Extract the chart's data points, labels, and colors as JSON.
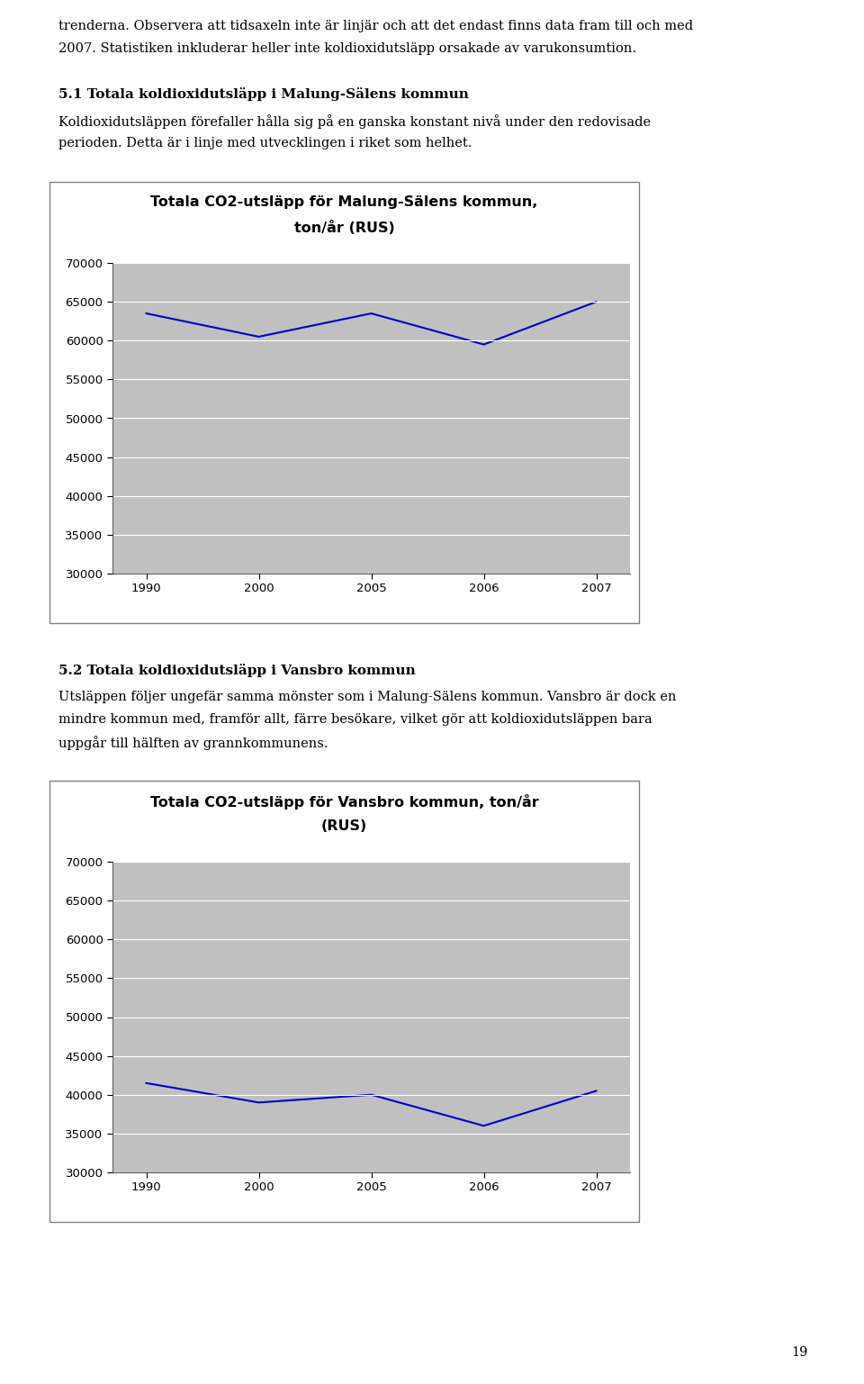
{
  "page_background": "#ffffff",
  "text_color": "#000000",
  "figsize": [
    9.6,
    15.37
  ],
  "top_text_line1": "trenderna. Observera att tidsaxeln inte är linjär och att det endast finns data fram till och med",
  "top_text_line2": "2007. Statistiken inkluderar heller inte koldioxidutsläpp orsakade av varukonsumtion.",
  "section1_heading": "5.1 Totala koldioxidutsläpp i Malung-Sälens kommun",
  "section1_body_line1": "Koldioxidutsläppen förefaller hålla sig på en ganska konstant nivå under den redovisade",
  "section1_body_line2": "perioden. Detta är i linje med utvecklingen i riket som helhet.",
  "chart1_title_line1": "Totala CO2-utsläpp för Malung-Sälens kommun,",
  "chart1_title_line2": "ton/år (RUS)",
  "chart1_x_labels": [
    "1990",
    "2000",
    "2005",
    "2006",
    "2007"
  ],
  "chart1_x_positions": [
    0,
    1,
    2,
    3,
    4
  ],
  "chart1_values": [
    63500,
    60500,
    63500,
    59500,
    65000
  ],
  "chart1_ylim": [
    30000,
    70000
  ],
  "chart1_yticks": [
    30000,
    35000,
    40000,
    45000,
    50000,
    55000,
    60000,
    65000,
    70000
  ],
  "section2_heading": "5.2 Totala koldioxidutsläpp i Vansbro kommun",
  "section2_body_line1": "Utsläppen följer ungefär samma mönster som i Malung-Sälens kommun. Vansbro är dock en",
  "section2_body_line2": "mindre kommun med, framför allt, färre besökare, vilket gör att koldioxidutsläppen bara",
  "section2_body_line3": "uppgår till hälften av grannkommunens.",
  "chart2_title_line1": "Totala CO2-utsläpp för Vansbro kommun, ton/år",
  "chart2_title_line2": "(RUS)",
  "chart2_x_labels": [
    "1990",
    "2000",
    "2005",
    "2006",
    "2007"
  ],
  "chart2_x_positions": [
    0,
    1,
    2,
    3,
    4
  ],
  "chart2_values": [
    41500,
    39000,
    40000,
    36000,
    40500
  ],
  "chart2_ylim": [
    30000,
    70000
  ],
  "chart2_yticks": [
    30000,
    35000,
    40000,
    45000,
    50000,
    55000,
    60000,
    65000,
    70000
  ],
  "line_color": "#0000cc",
  "chart_bg": "#c0c0c0",
  "chart_border_color": "#808080",
  "white_line_color": "#ffffff",
  "page_number": "19",
  "font_body": 10.5,
  "font_heading": 11,
  "font_chart_title": 11.5,
  "font_axis_tick": 9.5
}
